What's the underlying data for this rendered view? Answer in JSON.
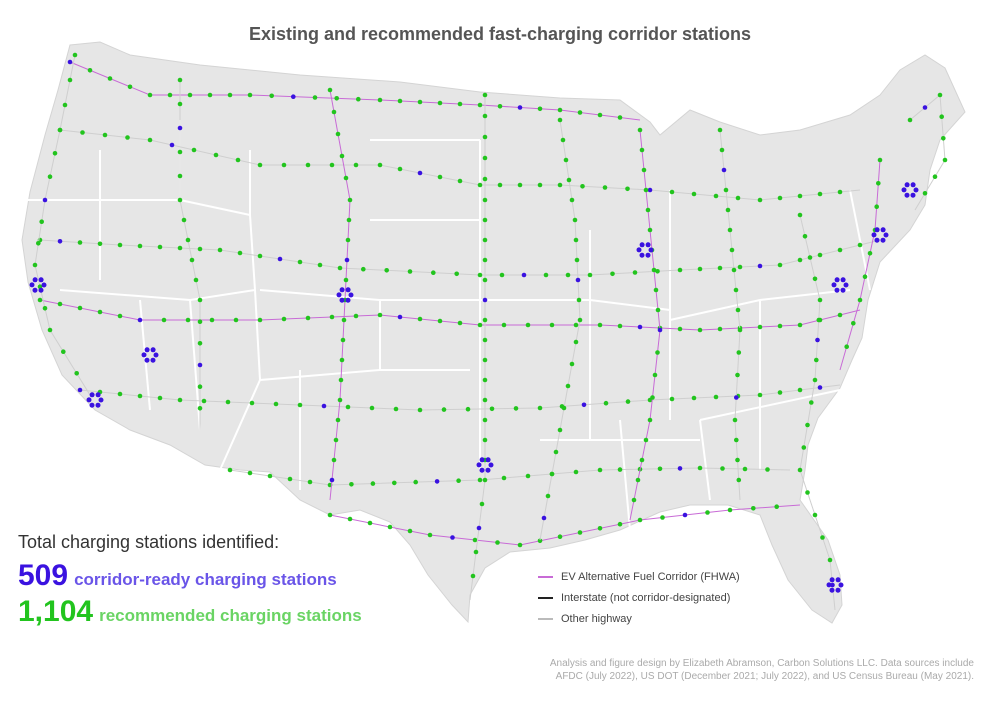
{
  "title": "Existing and recommended fast-charging corridor stations",
  "summary": {
    "heading": "Total charging stations identified:",
    "corridor_ready_count": "509",
    "corridor_ready_label": "corridor-ready charging stations",
    "recommended_count": "1,104",
    "recommended_label": "recommended charging stations"
  },
  "legend": {
    "items": [
      {
        "label": "EV Alternative Fuel Corridor (FHWA)",
        "color": "#c86bd6"
      },
      {
        "label": "Interstate (not corridor-designated)",
        "color": "#222222"
      },
      {
        "label": "Other highway",
        "color": "#bbbbbb"
      }
    ]
  },
  "credit": {
    "line1": "Analysis and figure design by Elizabeth Abramson, Carbon Solutions LLC. Data sources include",
    "line2": "AFDC (July 2022), US DOT (December 2021; July 2022), and US Census Bureau (May 2021)."
  },
  "colors": {
    "corridor_ready": "#3a12e0",
    "recommended": "#22c41e",
    "land": "#e6e6e6",
    "state_border": "#ffffff"
  }
}
